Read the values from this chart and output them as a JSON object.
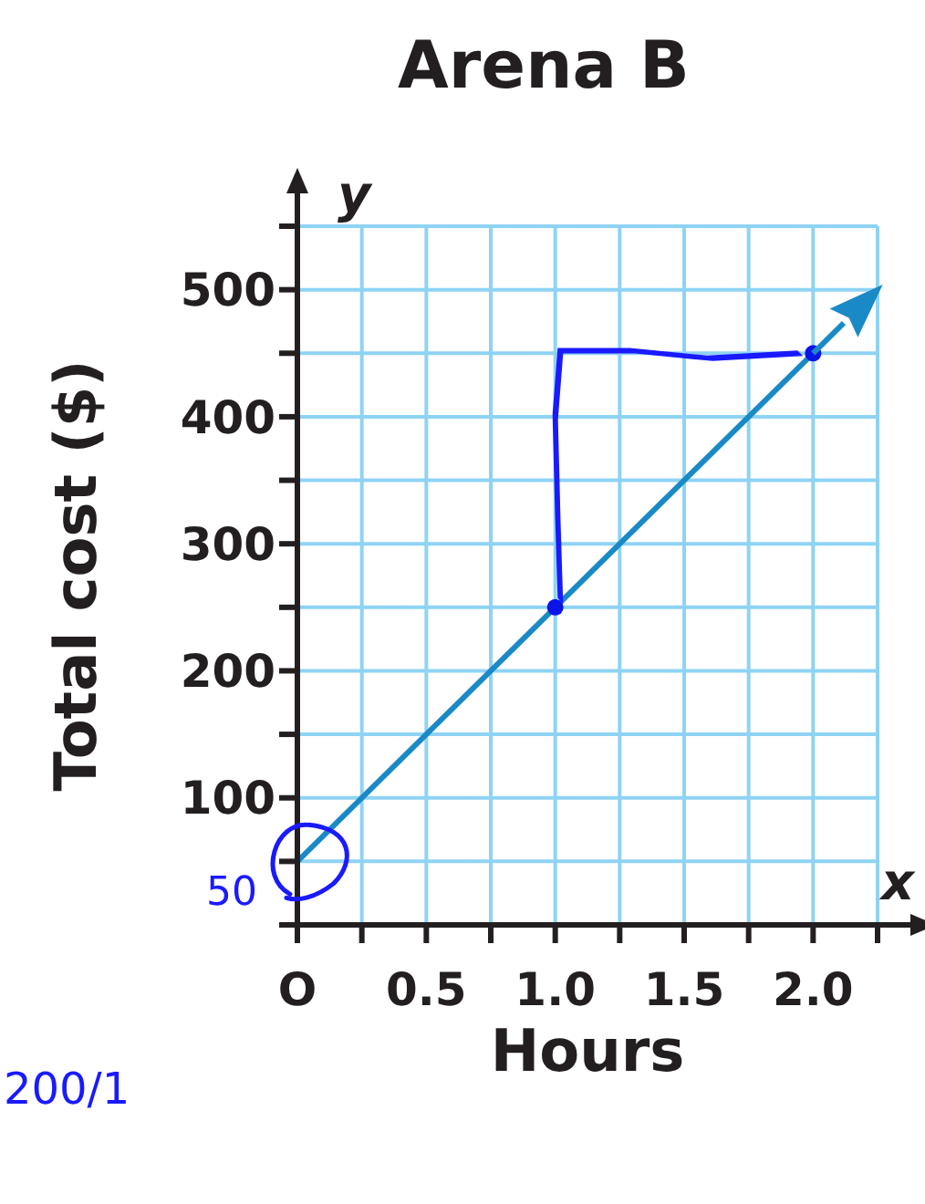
{
  "chart_data": {
    "type": "line",
    "title": "Arena B",
    "xlabel": "Hours",
    "ylabel": "Total cost ($)",
    "xlim": [
      0,
      2.25
    ],
    "ylim": [
      0,
      550
    ],
    "xticks": [
      {
        "value": 0,
        "label": "O"
      },
      {
        "value": 0.25,
        "label": null
      },
      0.5,
      {
        "value": 0.75,
        "label": null
      },
      {
        "value": 1,
        "label": "1.0"
      },
      {
        "value": 1.25,
        "label": null
      },
      1.5,
      {
        "value": 1.75,
        "label": null
      },
      {
        "value": 2,
        "label": "2.0"
      },
      {
        "value": 2.25,
        "label": null
      }
    ],
    "yticks": [
      {
        "value": 0,
        "label": null
      },
      {
        "value": 50,
        "label": null
      },
      100,
      {
        "value": 150,
        "label": null
      },
      200,
      {
        "value": 250,
        "label": null
      },
      300,
      {
        "value": 350,
        "label": null
      },
      400,
      {
        "value": 450,
        "label": null
      },
      500,
      {
        "value": 550,
        "label": null
      }
    ],
    "grid": true,
    "series": [
      {
        "color": "#1a8ac6",
        "marker": "none",
        "x": [
          0,
          1,
          2
        ],
        "values": [
          50,
          250,
          450
        ]
      },
      {
        "type": "scatter",
        "color": "#0a14e6",
        "marker": "circle",
        "x": [
          1,
          2
        ],
        "values": [
          250,
          450
        ]
      }
    ],
    "annotations": [
      {
        "text": "50",
        "x": 0,
        "y": 50
      },
      "y",
      "x",
      "200/1"
    ]
  }
}
